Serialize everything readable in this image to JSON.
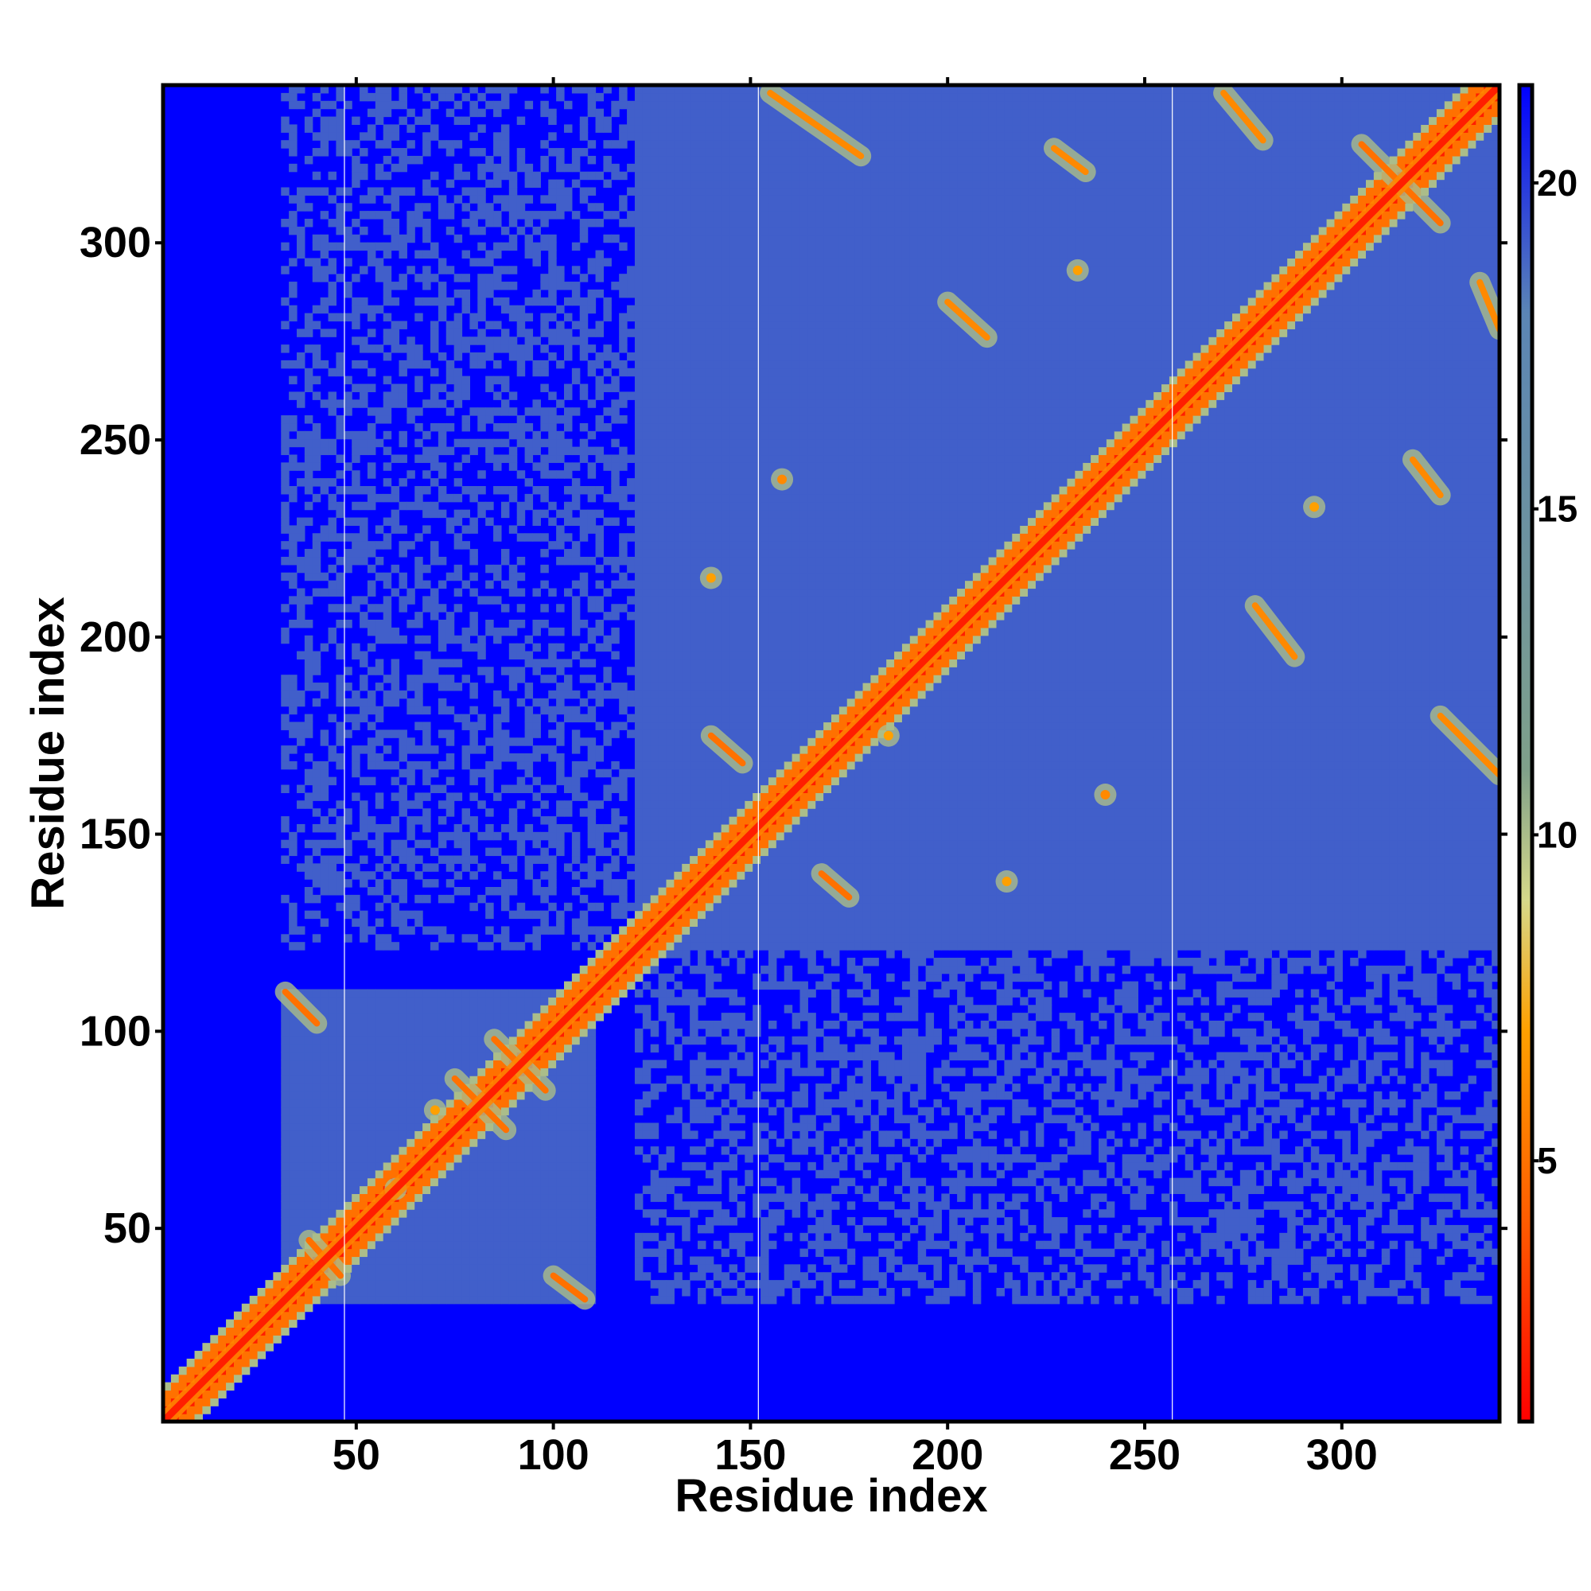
{
  "chart_data": {
    "type": "heatmap",
    "title": "",
    "xlabel": "Residue index",
    "ylabel": "Residue index",
    "xlim": [
      1,
      340
    ],
    "ylim": [
      1,
      340
    ],
    "x_ticks": [
      50,
      100,
      150,
      200,
      250,
      300
    ],
    "y_ticks": [
      50,
      100,
      150,
      200,
      250,
      300
    ],
    "colorbar": {
      "range": [
        1,
        21.5
      ],
      "ticks": [
        5,
        10,
        15,
        20
      ],
      "stops": [
        {
          "value": 1,
          "color": "#ff0000"
        },
        {
          "value": 4,
          "color": "#ff5a00"
        },
        {
          "value": 7,
          "color": "#ffa000"
        },
        {
          "value": 9,
          "color": "#d6d98a"
        },
        {
          "value": 11,
          "color": "#7fa08a"
        },
        {
          "value": 18,
          "color": "#5b85b5"
        },
        {
          "value": 21.5,
          "color": "#0000ff"
        }
      ]
    },
    "diagonal_value": 2,
    "background_value": 21.5,
    "domains": [
      {
        "start": 30,
        "end": 110,
        "interior_value": 19
      },
      {
        "start": 120,
        "end": 340,
        "interior_value": 19
      }
    ],
    "partial_contact_regions": [
      {
        "x_range": [
          120,
          340
        ],
        "y_range": [
          30,
          120
        ],
        "value": 19,
        "density": 0.45
      },
      {
        "x_range": [
          30,
          120
        ],
        "y_range": [
          120,
          340
        ],
        "value": 19,
        "density": 0.45
      }
    ],
    "contact_bands": [
      {
        "x1": 32,
        "y1": 110,
        "x2": 40,
        "y2": 102,
        "value": 5
      },
      {
        "x1": 75,
        "y1": 88,
        "x2": 88,
        "y2": 75,
        "value": 5
      },
      {
        "x1": 85,
        "y1": 98,
        "x2": 98,
        "y2": 85,
        "value": 5
      },
      {
        "x1": 38,
        "y1": 47,
        "x2": 46,
        "y2": 38,
        "value": 5
      },
      {
        "x1": 100,
        "y1": 38,
        "x2": 108,
        "y2": 32,
        "value": 5
      },
      {
        "x1": 140,
        "y1": 175,
        "x2": 148,
        "y2": 168,
        "value": 5
      },
      {
        "x1": 168,
        "y1": 140,
        "x2": 175,
        "y2": 134,
        "value": 5
      },
      {
        "x1": 155,
        "y1": 338,
        "x2": 178,
        "y2": 322,
        "value": 6
      },
      {
        "x1": 200,
        "y1": 285,
        "x2": 210,
        "y2": 276,
        "value": 6
      },
      {
        "x1": 227,
        "y1": 324,
        "x2": 235,
        "y2": 318,
        "value": 6
      },
      {
        "x1": 270,
        "y1": 338,
        "x2": 280,
        "y2": 326,
        "value": 6
      },
      {
        "x1": 305,
        "y1": 325,
        "x2": 325,
        "y2": 305,
        "value": 5
      },
      {
        "x1": 278,
        "y1": 208,
        "x2": 288,
        "y2": 195,
        "value": 6
      },
      {
        "x1": 318,
        "y1": 245,
        "x2": 325,
        "y2": 236,
        "value": 6
      },
      {
        "x1": 325,
        "y1": 180,
        "x2": 340,
        "y2": 165,
        "value": 6
      },
      {
        "x1": 335,
        "y1": 290,
        "x2": 340,
        "y2": 278,
        "value": 6
      }
    ],
    "contact_spots": [
      {
        "x": 158,
        "y": 240,
        "value": 6
      },
      {
        "x": 240,
        "y": 160,
        "value": 6
      },
      {
        "x": 185,
        "y": 175,
        "value": 7
      },
      {
        "x": 215,
        "y": 138,
        "value": 7
      },
      {
        "x": 140,
        "y": 215,
        "value": 7
      },
      {
        "x": 233,
        "y": 293,
        "value": 7
      },
      {
        "x": 293,
        "y": 233,
        "value": 7
      },
      {
        "x": 60,
        "y": 60,
        "value": 7
      },
      {
        "x": 70,
        "y": 80,
        "value": 7
      }
    ],
    "separator_lines_x": [
      47,
      152,
      257
    ]
  }
}
